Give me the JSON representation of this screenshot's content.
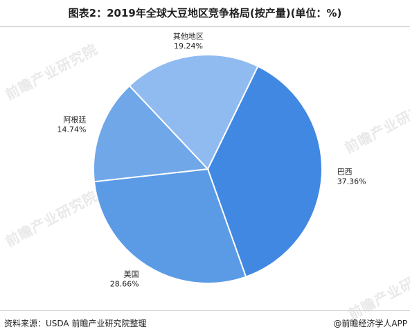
{
  "header": {
    "title": "图表2：2019年全球大豆地区竞争格局(按产量)(单位：%)"
  },
  "footer": {
    "source": "资料来源：USDA 前瞻产业研究院整理",
    "credit": "@前瞻经济学人APP"
  },
  "watermark": {
    "text": "前瞻产业研究院"
  },
  "colors": {
    "dark_blue": "#4088e2",
    "mid_blue": "#5b9be6",
    "light_blue": "#6fa7e9",
    "pale_blue": "#90bbf0"
  },
  "chart_data": {
    "type": "pie",
    "title": "图表2：2019年全球大豆地区竞争格局(按产量)(单位：%)",
    "slices": [
      {
        "label": "巴西",
        "value": 37.36,
        "value_label": "37.36%",
        "color": "#4088e2"
      },
      {
        "label": "美国",
        "value": 28.66,
        "value_label": "28.66%",
        "color": "#5b9be6"
      },
      {
        "label": "阿根廷",
        "value": 14.74,
        "value_label": "14.74%",
        "color": "#6fa7e9"
      },
      {
        "label": "其他地区",
        "value": 19.24,
        "value_label": "19.24%",
        "color": "#90bbf0"
      }
    ],
    "legend": "none"
  }
}
